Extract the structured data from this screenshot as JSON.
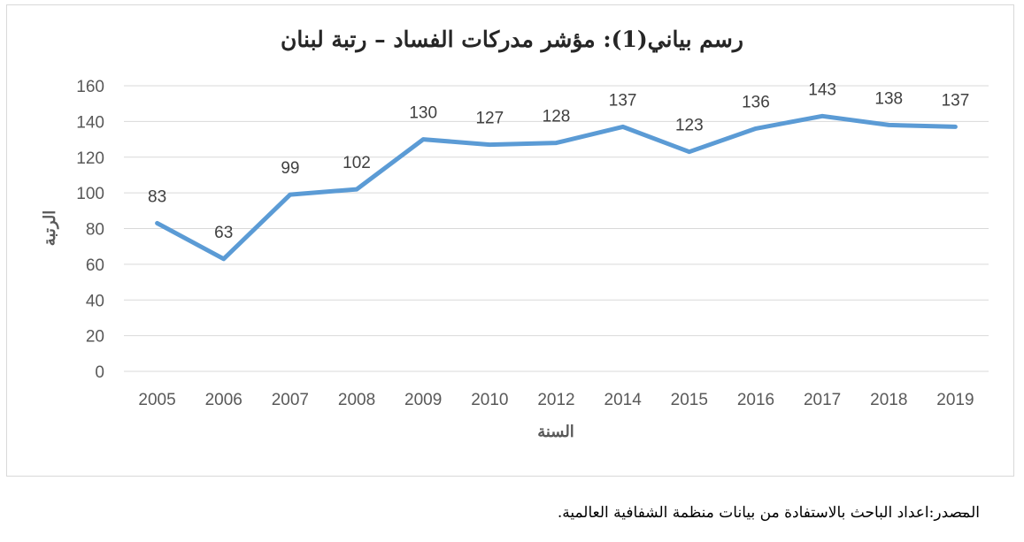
{
  "chart_data": {
    "type": "line",
    "title": "رسم بياني(1): مؤشر مدركات الفساد – رتبة لبنان",
    "xlabel": "السنة",
    "ylabel": "الرتبة",
    "categories": [
      "2005",
      "2006",
      "2007",
      "2008",
      "2009",
      "2010",
      "2012",
      "2014",
      "2015",
      "2016",
      "2017",
      "2018",
      "2019"
    ],
    "series": [
      {
        "values": [
          83,
          63,
          99,
          102,
          130,
          127,
          128,
          137,
          123,
          136,
          143,
          138,
          137
        ]
      }
    ],
    "ylim": [
      0,
      160
    ],
    "yticks": [
      0,
      20,
      40,
      60,
      80,
      100,
      120,
      140,
      160
    ],
    "grid": true,
    "data_labels": true,
    "line_color": "#5b9bd5"
  },
  "footer": {
    "dash": "–",
    "source": "المصدر:اعداد الباحث بالاستفادة من بيانات منظمة الشفافية العالمية."
  }
}
